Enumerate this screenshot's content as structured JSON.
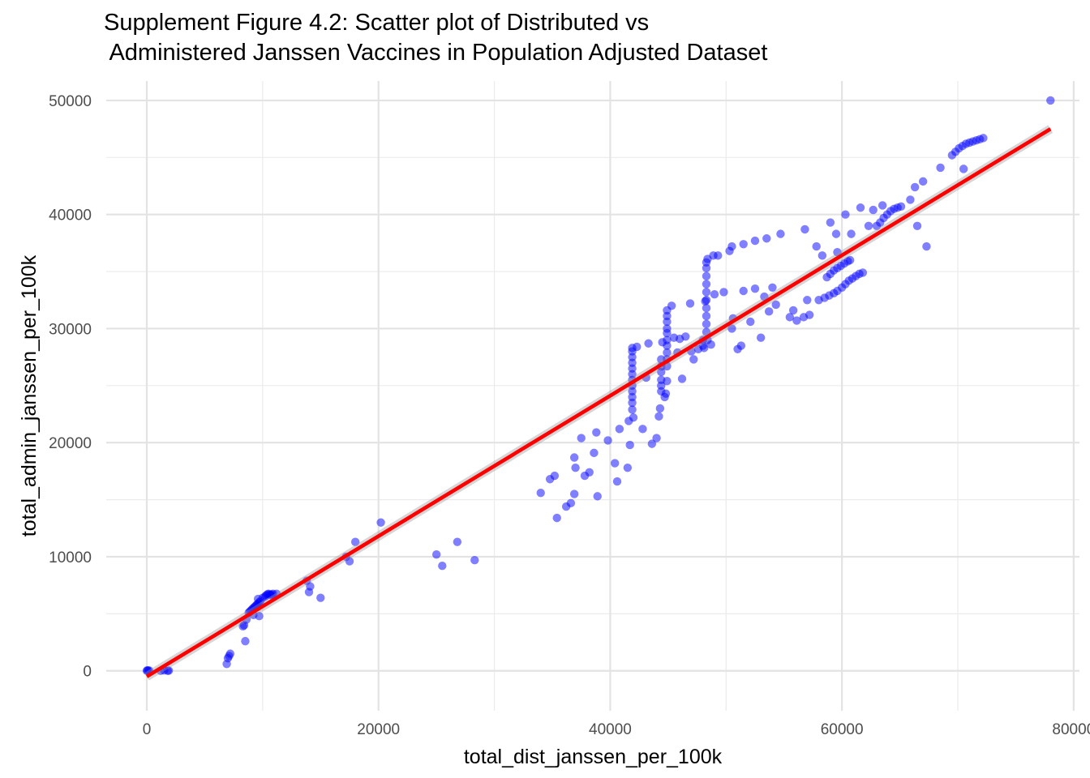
{
  "chart_data": {
    "type": "scatter",
    "title_lines": [
      "Supplement Figure 4.2: Scatter plot of Distributed vs",
      " Administered Janssen Vaccines in Population Adjusted Dataset"
    ],
    "xlabel": "total_dist_janssen_per_100k",
    "ylabel": "total_admin_janssen_per_100k",
    "xlim": [
      -3500,
      80500
    ],
    "ylim": [
      -3500,
      51700
    ],
    "x_ticks": [
      0,
      20000,
      40000,
      60000,
      80000
    ],
    "y_ticks": [
      0,
      10000,
      20000,
      30000,
      40000,
      50000
    ],
    "x_tick_labels": [
      "0",
      "20000",
      "40000",
      "60000",
      "80000"
    ],
    "y_tick_labels": [
      "0",
      "10000",
      "20000",
      "30000",
      "40000",
      "50000"
    ],
    "grid": true,
    "point_color": "#0000ff",
    "point_opacity": 0.5,
    "fit_line": {
      "color": "#ff0000",
      "start": [
        0,
        -500
      ],
      "end": [
        78000,
        47500
      ],
      "confidence_band": true
    },
    "points": [
      [
        0,
        0
      ],
      [
        50,
        50
      ],
      [
        120,
        0
      ],
      [
        200,
        30
      ],
      [
        1200,
        0
      ],
      [
        1500,
        40
      ],
      [
        1800,
        0
      ],
      [
        1900,
        20
      ],
      [
        6900,
        600
      ],
      [
        7000,
        1100
      ],
      [
        7100,
        1300
      ],
      [
        7200,
        1500
      ],
      [
        8300,
        3900
      ],
      [
        8400,
        4000
      ],
      [
        8500,
        2600
      ],
      [
        8600,
        4500
      ],
      [
        8800,
        5100
      ],
      [
        8900,
        5200
      ],
      [
        9000,
        5300
      ],
      [
        9100,
        5400
      ],
      [
        9200,
        5500
      ],
      [
        9300,
        5600
      ],
      [
        9400,
        5700
      ],
      [
        9500,
        5800
      ],
      [
        9600,
        5900
      ],
      [
        9700,
        6000
      ],
      [
        9800,
        6100
      ],
      [
        9200,
        4900
      ],
      [
        9600,
        6300
      ],
      [
        9700,
        4800
      ],
      [
        10000,
        6400
      ],
      [
        10200,
        6500
      ],
      [
        10300,
        6600
      ],
      [
        10400,
        6700
      ],
      [
        10500,
        6750
      ],
      [
        10600,
        6700
      ],
      [
        10700,
        6650
      ],
      [
        10800,
        6700
      ],
      [
        10900,
        6750
      ],
      [
        11200,
        6750
      ],
      [
        13800,
        7900
      ],
      [
        14000,
        6900
      ],
      [
        14100,
        7400
      ],
      [
        15000,
        6400
      ],
      [
        17200,
        10000
      ],
      [
        17500,
        9600
      ],
      [
        18000,
        11300
      ],
      [
        20200,
        13000
      ],
      [
        25000,
        10200
      ],
      [
        25500,
        9200
      ],
      [
        26800,
        11300
      ],
      [
        28300,
        9700
      ],
      [
        34000,
        15600
      ],
      [
        34800,
        16800
      ],
      [
        35200,
        17100
      ],
      [
        35400,
        13400
      ],
      [
        36200,
        14400
      ],
      [
        36600,
        14700
      ],
      [
        36900,
        15500
      ],
      [
        36900,
        18700
      ],
      [
        37000,
        17800
      ],
      [
        37500,
        20400
      ],
      [
        37800,
        17100
      ],
      [
        38200,
        17400
      ],
      [
        38600,
        19100
      ],
      [
        38800,
        20900
      ],
      [
        38900,
        15300
      ],
      [
        39800,
        20200
      ],
      [
        40400,
        18200
      ],
      [
        40600,
        16600
      ],
      [
        40800,
        21200
      ],
      [
        41500,
        17800
      ],
      [
        41600,
        21900
      ],
      [
        41700,
        19800
      ],
      [
        42000,
        22200
      ],
      [
        41900,
        22900
      ],
      [
        41900,
        23500
      ],
      [
        41900,
        24000
      ],
      [
        41900,
        24500
      ],
      [
        41900,
        25000
      ],
      [
        41900,
        25500
      ],
      [
        41900,
        26000
      ],
      [
        41900,
        26500
      ],
      [
        41900,
        27000
      ],
      [
        41900,
        27500
      ],
      [
        41900,
        28000
      ],
      [
        41900,
        28300
      ],
      [
        42300,
        28400
      ],
      [
        42800,
        21200
      ],
      [
        43100,
        25700
      ],
      [
        43300,
        28700
      ],
      [
        43600,
        19900
      ],
      [
        44000,
        20400
      ],
      [
        44200,
        22300
      ],
      [
        44300,
        23000
      ],
      [
        44400,
        24500
      ],
      [
        44400,
        25000
      ],
      [
        44400,
        25500
      ],
      [
        44400,
        26200
      ],
      [
        44400,
        26700
      ],
      [
        44400,
        27300
      ],
      [
        44500,
        28800
      ],
      [
        44700,
        24000
      ],
      [
        44800,
        24300
      ],
      [
        44900,
        25400
      ],
      [
        44900,
        26700
      ],
      [
        44900,
        27300
      ],
      [
        44900,
        27900
      ],
      [
        44900,
        28500
      ],
      [
        44900,
        29000
      ],
      [
        44900,
        29600
      ],
      [
        44900,
        30000
      ],
      [
        44900,
        30600
      ],
      [
        44900,
        31100
      ],
      [
        44900,
        31600
      ],
      [
        45300,
        32000
      ],
      [
        45500,
        29200
      ],
      [
        45800,
        27900
      ],
      [
        46000,
        29100
      ],
      [
        46200,
        25600
      ],
      [
        46500,
        29300
      ],
      [
        46900,
        32200
      ],
      [
        47000,
        28000
      ],
      [
        47200,
        27300
      ],
      [
        47600,
        28200
      ],
      [
        48000,
        28500
      ],
      [
        48100,
        28300
      ],
      [
        48000,
        29000
      ],
      [
        48200,
        32400
      ],
      [
        48400,
        29000
      ],
      [
        48300,
        29700
      ],
      [
        48300,
        30400
      ],
      [
        48300,
        31100
      ],
      [
        48300,
        31800
      ],
      [
        48300,
        32500
      ],
      [
        48300,
        33200
      ],
      [
        48300,
        33900
      ],
      [
        48300,
        34600
      ],
      [
        48300,
        35300
      ],
      [
        48300,
        35800
      ],
      [
        48400,
        36100
      ],
      [
        48700,
        28600
      ],
      [
        48900,
        36400
      ],
      [
        49000,
        33000
      ],
      [
        49800,
        33200
      ],
      [
        50300,
        36800
      ],
      [
        50500,
        30000
      ],
      [
        50600,
        30900
      ],
      [
        51000,
        28200
      ],
      [
        51300,
        28500
      ],
      [
        51500,
        33300
      ],
      [
        52100,
        30600
      ],
      [
        52500,
        33500
      ],
      [
        53000,
        29200
      ],
      [
        53300,
        32800
      ],
      [
        53700,
        31500
      ],
      [
        54000,
        33600
      ],
      [
        54300,
        32100
      ],
      [
        55500,
        31000
      ],
      [
        55800,
        31600
      ],
      [
        56100,
        30700
      ],
      [
        56700,
        31000
      ],
      [
        57000,
        32500
      ],
      [
        57200,
        31200
      ],
      [
        58000,
        32500
      ],
      [
        58500,
        32700
      ],
      [
        58900,
        32900
      ],
      [
        59300,
        33100
      ],
      [
        59600,
        33300
      ],
      [
        60000,
        33600
      ],
      [
        60300,
        33900
      ],
      [
        60600,
        34200
      ],
      [
        60900,
        34400
      ],
      [
        61200,
        34600
      ],
      [
        61500,
        34800
      ],
      [
        61800,
        34900
      ],
      [
        58700,
        34500
      ],
      [
        59000,
        34800
      ],
      [
        59300,
        35100
      ],
      [
        59600,
        35300
      ],
      [
        59900,
        35500
      ],
      [
        60200,
        35700
      ],
      [
        60500,
        35900
      ],
      [
        60700,
        36000
      ],
      [
        49300,
        36400
      ],
      [
        50500,
        37200
      ],
      [
        51500,
        37400
      ],
      [
        52500,
        37700
      ],
      [
        53500,
        37900
      ],
      [
        54700,
        38300
      ],
      [
        56800,
        38700
      ],
      [
        57800,
        37200
      ],
      [
        58300,
        36400
      ],
      [
        59000,
        39300
      ],
      [
        59500,
        38300
      ],
      [
        59600,
        36700
      ],
      [
        60300,
        40000
      ],
      [
        60800,
        38300
      ],
      [
        61600,
        40600
      ],
      [
        62300,
        39000
      ],
      [
        62700,
        40400
      ],
      [
        63000,
        39000
      ],
      [
        63300,
        39300
      ],
      [
        63600,
        39700
      ],
      [
        63900,
        40000
      ],
      [
        64200,
        40300
      ],
      [
        64500,
        40500
      ],
      [
        64800,
        40600
      ],
      [
        65100,
        40700
      ],
      [
        63500,
        40800
      ],
      [
        65900,
        41300
      ],
      [
        66300,
        42400
      ],
      [
        67000,
        42900
      ],
      [
        68500,
        44100
      ],
      [
        66500,
        39000
      ],
      [
        67300,
        37200
      ],
      [
        69500,
        45200
      ],
      [
        69800,
        45500
      ],
      [
        70100,
        45800
      ],
      [
        70400,
        46000
      ],
      [
        70700,
        46200
      ],
      [
        71000,
        46300
      ],
      [
        71300,
        46400
      ],
      [
        71600,
        46500
      ],
      [
        71900,
        46600
      ],
      [
        72200,
        46700
      ],
      [
        70500,
        44000
      ],
      [
        78000,
        50000
      ]
    ]
  }
}
